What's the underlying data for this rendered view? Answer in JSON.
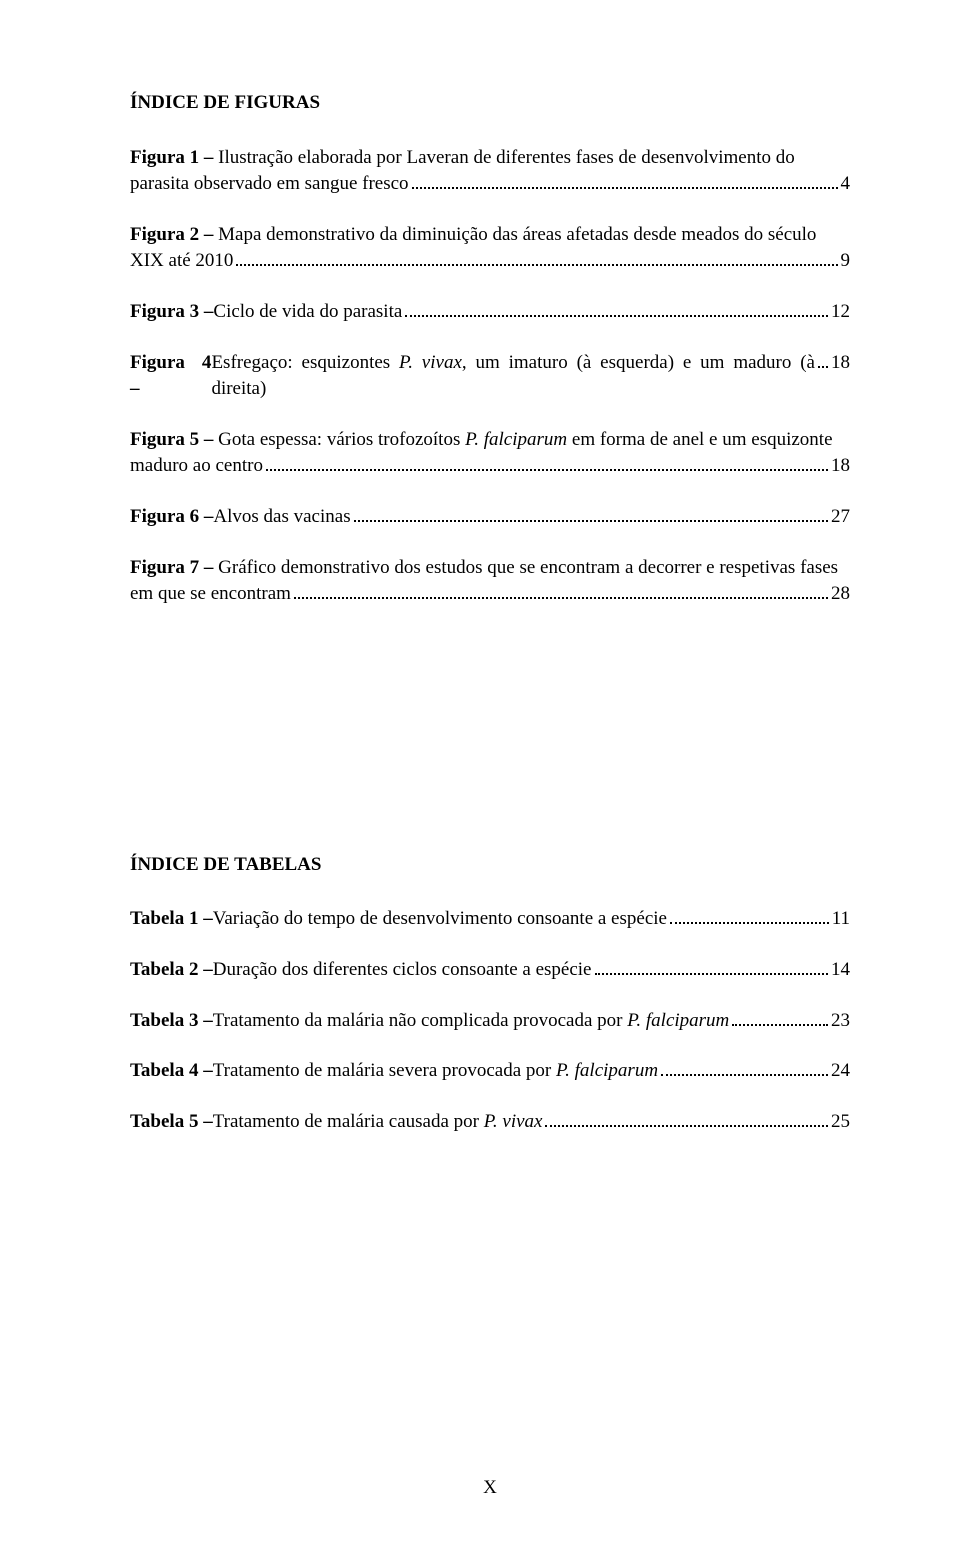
{
  "figuras": {
    "heading": "ÍNDICE DE FIGURAS",
    "items": [
      {
        "label": "Figura 1 –",
        "pre": " Ilustração elaborada por Laveran de diferentes fases de desenvolvimento do",
        "last": "parasita observado em sangue fresco",
        "page": "4"
      },
      {
        "label": "Figura 2 –",
        "pre": " Mapa demonstrativo da diminuição das áreas afetadas desde meados do século",
        "last": "XIX até 2010",
        "page": "9"
      },
      {
        "label": "Figura 3 –",
        "pre": "",
        "last": " Ciclo de vida do parasita",
        "page": "12"
      },
      {
        "label": "Figura 4 –",
        "pre": "",
        "last_html": " Esfregaço: esquizontes <span class=\"italic\">P. vivax</span>, um imaturo (à esquerda) e um maduro (à direita)",
        "page": "18"
      },
      {
        "label": "Figura 5 –",
        "pre_html": " Gota espessa: vários trofozoítos <span class=\"italic\">P. falciparum</span> em forma de anel e um esquizonte",
        "last": "maduro ao centro",
        "page": "18"
      },
      {
        "label": "Figura 6 –",
        "pre": "",
        "last": " Alvos das vacinas",
        "page": "27"
      },
      {
        "label": "Figura 7 –",
        "pre": " Gráfico demonstrativo dos estudos que se encontram a decorrer e respetivas fases",
        "last": "em que se encontram",
        "page": "28"
      }
    ]
  },
  "tabelas": {
    "heading": "ÍNDICE DE TABELAS",
    "items": [
      {
        "label": "Tabela 1 –",
        "pre": "",
        "last": " Variação do tempo de desenvolvimento consoante a espécie",
        "page": "11"
      },
      {
        "label": "Tabela 2 –",
        "pre": "",
        "last": " Duração dos diferentes ciclos consoante a espécie",
        "page": "14"
      },
      {
        "label": "Tabela 3 –",
        "pre": "",
        "last_html": " Tratamento da malária não complicada provocada por <span class=\"italic\">P. falciparum</span>",
        "page": "23"
      },
      {
        "label": "Tabela 4 –",
        "pre": "",
        "last_html": " Tratamento de malária severa provocada por <span class=\"italic\">P. falciparum</span>",
        "page": "24"
      },
      {
        "label": "Tabela 5 –",
        "pre": "",
        "last_html": " Tratamento de malária causada por <span class=\"italic\">P. vivax</span>",
        "page": "25"
      }
    ]
  },
  "page_number": "X"
}
